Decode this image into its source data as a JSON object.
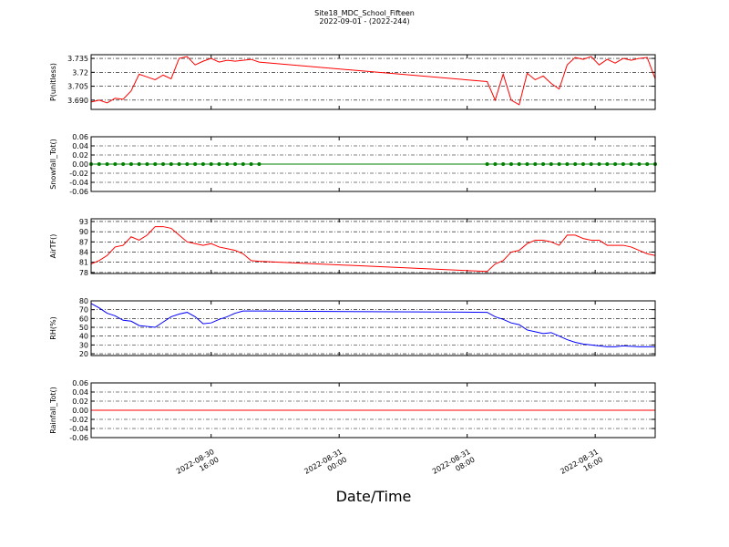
{
  "chart_data": [
    {
      "type": "line",
      "title": "Site18_MDC_School_Fifteen",
      "subtitle": "2022-09-01 - (2022-244)",
      "ylabel": "P(unitless)",
      "ylim": [
        3.68,
        3.739
      ],
      "yticks": [
        {
          "value": 3.69,
          "label": "3.690"
        },
        3.705,
        3.72,
        3.735
      ],
      "grid": true,
      "series": [
        {
          "color": "#ff0000",
          "values": [
            3.688,
            3.69,
            3.687,
            3.692,
            3.691,
            3.7,
            3.718,
            3.715,
            3.712,
            3.717,
            3.713,
            3.735,
            3.737,
            3.728,
            3.732,
            3.735,
            3.731,
            3.733,
            3.732,
            3.733,
            3.734,
            3.731,
            3.71,
            3.69,
            3.718,
            3.69,
            3.685,
            3.719,
            3.712,
            3.716,
            3.708,
            3.702,
            3.728,
            3.736,
            3.734,
            3.737,
            3.728,
            3.734,
            3.73,
            3.735,
            3.733,
            3.735,
            3.736,
            3.713
          ]
        }
      ]
    },
    {
      "type": "line",
      "ylabel": "Snowfall_Tot()",
      "ylim": [
        -0.06,
        0.06
      ],
      "yticks": [
        -0.06,
        -0.04,
        -0.02,
        {
          "value": 0,
          "label": "0.00"
        },
        0.02,
        0.04,
        0.06
      ],
      "grid": true,
      "marker": true,
      "series": [
        {
          "color": "#008000",
          "values": [
            0,
            0,
            0,
            0,
            0,
            0,
            0,
            0,
            0,
            0,
            0,
            0,
            0,
            0,
            0,
            0,
            0,
            0,
            0,
            0,
            0,
            0,
            0,
            0,
            0,
            0,
            0,
            0,
            0,
            0,
            0,
            0,
            0,
            0,
            0,
            0,
            0,
            0,
            0,
            0,
            0,
            0,
            0,
            0
          ]
        }
      ]
    },
    {
      "type": "line",
      "ylabel": "AirTF()",
      "ylim": [
        77.7,
        93.8
      ],
      "yticks": [
        78,
        81,
        84,
        87,
        90,
        93
      ],
      "grid": true,
      "series": [
        {
          "color": "#ff0000",
          "values": [
            80.5,
            81.5,
            83,
            85.5,
            86,
            88.5,
            87.5,
            89,
            91.5,
            91.5,
            91,
            89,
            87,
            86.5,
            86,
            86.5,
            85.5,
            85,
            84.5,
            83.5,
            81.5,
            81.3,
            78.3,
            80.5,
            81.5,
            84,
            84.5,
            86.5,
            87.5,
            87.5,
            87,
            86,
            89,
            89,
            88,
            87.5,
            87.5,
            86,
            86,
            86,
            85.5,
            84.5,
            83.5,
            83
          ]
        }
      ]
    },
    {
      "type": "line",
      "ylabel": "RH(%)",
      "ylim": [
        18,
        80
      ],
      "yticks": [
        20,
        30,
        40,
        50,
        60,
        70,
        80
      ],
      "grid": true,
      "series": [
        {
          "color": "#0000ff",
          "values": [
            77,
            72,
            66,
            63,
            58,
            57,
            52,
            51,
            50,
            56,
            62,
            65,
            67,
            62,
            54,
            55,
            59,
            62,
            66,
            68.5,
            68.5,
            68.5,
            67,
            62,
            59,
            55,
            53,
            47,
            45,
            43,
            44,
            40,
            36,
            33,
            31,
            30,
            29,
            28,
            28,
            29,
            28.5,
            28,
            28,
            28
          ]
        }
      ]
    },
    {
      "type": "line",
      "ylabel": "Rainfall_Tot()",
      "xlabel": "Date/Time",
      "ylim": [
        -0.06,
        0.06
      ],
      "yticks": [
        -0.06,
        -0.04,
        -0.02,
        {
          "value": 0,
          "label": "0.00"
        },
        0.02,
        0.04,
        0.06
      ],
      "grid": true,
      "x": [
        "2022-08-30 08:30",
        "2022-08-30 09:00",
        "2022-08-30 09:30",
        "2022-08-30 10:00",
        "2022-08-30 10:30",
        "2022-08-30 11:00",
        "2022-08-30 11:30",
        "2022-08-30 12:00",
        "2022-08-30 12:30",
        "2022-08-30 13:00",
        "2022-08-30 13:30",
        "2022-08-30 14:00",
        "2022-08-30 14:30",
        "2022-08-30 15:00",
        "2022-08-30 15:30",
        "2022-08-30 16:00",
        "2022-08-30 16:30",
        "2022-08-30 17:00",
        "2022-08-30 17:30",
        "2022-08-30 18:00",
        "2022-08-30 18:30",
        "2022-08-30 19:00",
        "2022-08-31 09:15",
        "2022-08-31 09:45",
        "2022-08-31 10:15",
        "2022-08-31 10:45",
        "2022-08-31 11:15",
        "2022-08-31 11:45",
        "2022-08-31 12:15",
        "2022-08-31 12:45",
        "2022-08-31 13:15",
        "2022-08-31 13:45",
        "2022-08-31 14:15",
        "2022-08-31 14:45",
        "2022-08-31 15:15",
        "2022-08-31 15:45",
        "2022-08-31 16:15",
        "2022-08-31 16:45",
        "2022-08-31 17:15",
        "2022-08-31 17:45",
        "2022-08-31 18:15",
        "2022-08-31 18:45",
        "2022-08-31 19:15",
        "2022-08-31 19:45"
      ],
      "xlim": [
        "2022-08-30 08:30",
        "2022-08-31 19:45"
      ],
      "xticks": [
        "2022-08-30 16:00",
        "2022-08-31 00:00",
        "2022-08-31 08:00",
        "2022-08-31 16:00"
      ],
      "series": [
        {
          "color": "#ff0000",
          "values": [
            0,
            0,
            0,
            0,
            0,
            0,
            0,
            0,
            0,
            0,
            0,
            0,
            0,
            0,
            0,
            0,
            0,
            0,
            0,
            0,
            0,
            0,
            0,
            0,
            0,
            0,
            0,
            0,
            0,
            0,
            0,
            0,
            0,
            0,
            0,
            0,
            0,
            0,
            0,
            0,
            0,
            0,
            0,
            0
          ]
        }
      ]
    }
  ]
}
